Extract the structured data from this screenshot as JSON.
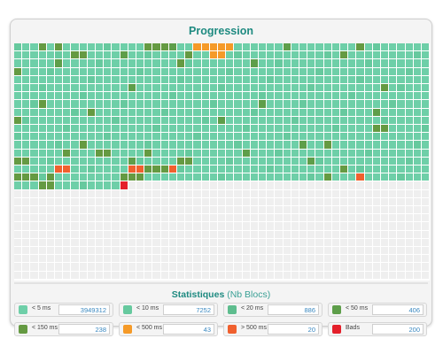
{
  "header": {
    "title": "Progression"
  },
  "colors": {
    "lt5": "#6ecfa8",
    "lt10": "#66c99e",
    "lt20": "#5ebd8e",
    "lt50": "#5e9e4a",
    "lt150": "#659a42",
    "lt500": "#f59a28",
    "gt500": "#f0602e",
    "bads": "#e41f2a",
    "empty": "#efefef"
  },
  "progress": {
    "columns": 51,
    "rows": 29,
    "filled_rows": 18,
    "last_row_filled": 14,
    "overrides": [
      [
        0,
        3,
        "lt150"
      ],
      [
        0,
        5,
        "lt150"
      ],
      [
        0,
        16,
        "lt150"
      ],
      [
        0,
        17,
        "lt150"
      ],
      [
        0,
        18,
        "lt150"
      ],
      [
        0,
        19,
        "lt50"
      ],
      [
        0,
        22,
        "lt500"
      ],
      [
        0,
        23,
        "lt500"
      ],
      [
        0,
        24,
        "lt500"
      ],
      [
        0,
        25,
        "lt500"
      ],
      [
        0,
        26,
        "lt500"
      ],
      [
        0,
        33,
        "lt50"
      ],
      [
        0,
        42,
        "lt150"
      ],
      [
        1,
        7,
        "lt150"
      ],
      [
        1,
        8,
        "lt150"
      ],
      [
        1,
        13,
        "lt50"
      ],
      [
        1,
        21,
        "lt150"
      ],
      [
        1,
        24,
        "lt500"
      ],
      [
        1,
        25,
        "lt500"
      ],
      [
        1,
        40,
        "lt150"
      ],
      [
        2,
        5,
        "lt50"
      ],
      [
        2,
        20,
        "lt150"
      ],
      [
        2,
        29,
        "lt50"
      ],
      [
        3,
        0,
        "lt150"
      ],
      [
        5,
        14,
        "lt50"
      ],
      [
        5,
        45,
        "lt150"
      ],
      [
        7,
        30,
        "lt50"
      ],
      [
        7,
        3,
        "lt150"
      ],
      [
        8,
        9,
        "lt150"
      ],
      [
        8,
        44,
        "lt50"
      ],
      [
        9,
        0,
        "lt150"
      ],
      [
        9,
        25,
        "lt50"
      ],
      [
        10,
        44,
        "lt150"
      ],
      [
        10,
        45,
        "lt150"
      ],
      [
        12,
        8,
        "lt150"
      ],
      [
        12,
        35,
        "lt50"
      ],
      [
        12,
        38,
        "lt150"
      ],
      [
        13,
        6,
        "lt150"
      ],
      [
        13,
        10,
        "lt150"
      ],
      [
        13,
        11,
        "lt150"
      ],
      [
        13,
        16,
        "lt150"
      ],
      [
        13,
        28,
        "lt50"
      ],
      [
        14,
        0,
        "lt150"
      ],
      [
        14,
        1,
        "lt150"
      ],
      [
        14,
        14,
        "lt50"
      ],
      [
        14,
        20,
        "lt150"
      ],
      [
        14,
        21,
        "lt150"
      ],
      [
        14,
        36,
        "lt50"
      ],
      [
        15,
        5,
        "gt500"
      ],
      [
        15,
        6,
        "gt500"
      ],
      [
        15,
        14,
        "gt500"
      ],
      [
        15,
        15,
        "gt500"
      ],
      [
        15,
        16,
        "lt150"
      ],
      [
        15,
        17,
        "lt150"
      ],
      [
        15,
        18,
        "lt150"
      ],
      [
        15,
        19,
        "gt500"
      ],
      [
        15,
        40,
        "lt150"
      ],
      [
        16,
        0,
        "lt150"
      ],
      [
        16,
        1,
        "lt150"
      ],
      [
        16,
        2,
        "lt150"
      ],
      [
        16,
        4,
        "lt150"
      ],
      [
        16,
        13,
        "lt150"
      ],
      [
        16,
        14,
        "lt150"
      ],
      [
        16,
        15,
        "lt150"
      ],
      [
        16,
        38,
        "lt150"
      ],
      [
        16,
        42,
        "gt500"
      ],
      [
        17,
        3,
        "lt150"
      ],
      [
        17,
        4,
        "lt150"
      ],
      [
        17,
        13,
        "bads"
      ]
    ]
  },
  "stats": {
    "title": "Statistiques",
    "subtitle": "(Nb Blocs)",
    "items": [
      {
        "key": "lt5",
        "label": "< 5 ms",
        "value": "3949312"
      },
      {
        "key": "lt10",
        "label": "< 10 ms",
        "value": "7252"
      },
      {
        "key": "lt20",
        "label": "< 20 ms",
        "value": "886"
      },
      {
        "key": "lt50",
        "label": "< 50 ms",
        "value": "406"
      },
      {
        "key": "lt150",
        "label": "< 150 ms",
        "value": "238"
      },
      {
        "key": "lt500",
        "label": "< 500 ms",
        "value": "43"
      },
      {
        "key": "gt500",
        "label": "> 500 ms",
        "value": "20"
      },
      {
        "key": "bads",
        "label": "Bads",
        "value": "200"
      }
    ]
  }
}
